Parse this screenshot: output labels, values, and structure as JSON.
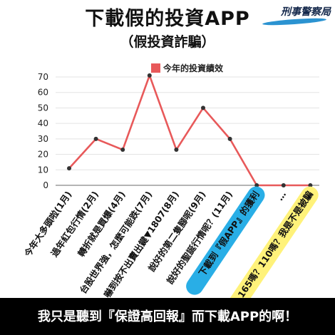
{
  "title": "下載假的投資APP",
  "subtitle": "（假投資詐騙）",
  "logo": {
    "text": "刑事警察局"
  },
  "footer": "我只是聽到『保證高回報』而下載APP的啊！",
  "chart_data": {
    "type": "line",
    "categories": [
      "今年大多頭啦(1月)",
      "過年紅包行情(2月)",
      "轉折就是買爆(4月)",
      "台股世界強，怎麼可能跌(7月)",
      "嚇到按不出賣出鍵▼1807(8月)",
      "說好的第二隻腳呢(9月)",
      "說好的聖誕行情呢？(11月)",
      "下載到『假APP』的獲利",
      "…",
      "165嗎？110嗎？我是不是被騙"
    ],
    "series": [
      {
        "name": "今年的投資績效",
        "values": [
          11,
          30,
          23,
          71,
          23,
          50,
          30,
          0,
          0,
          0
        ]
      }
    ],
    "ylim": [
      0,
      70
    ],
    "yticks": [
      0,
      10,
      20,
      30,
      40,
      50,
      60,
      70
    ],
    "grid": "horizontal",
    "legend": "top-center",
    "colors": {
      "line": "#e8595a",
      "marker": "#333333",
      "highlight_blue": "#29aee6",
      "highlight_yellow": "#fff27a",
      "grid": "#e3e3e3",
      "axis": "#888888"
    }
  }
}
